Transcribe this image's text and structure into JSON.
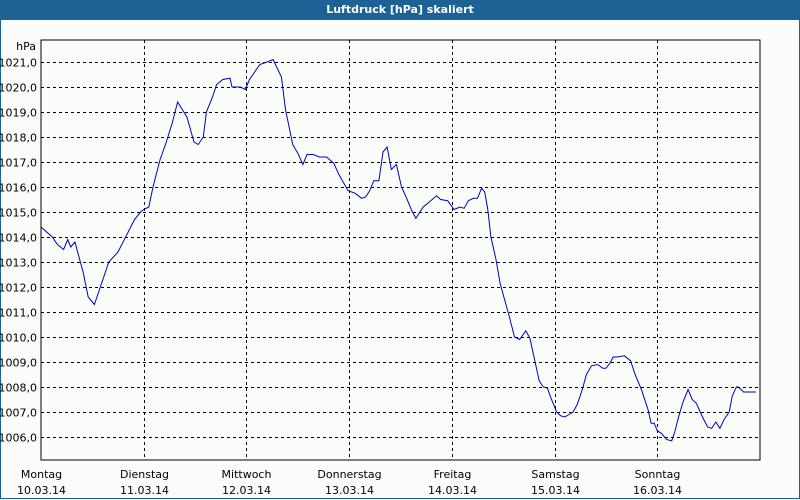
{
  "window": {
    "title": "Luftdruck [hPa] skaliert"
  },
  "colors": {
    "titlebar": "#1d6295",
    "line": "#0000c0",
    "grid": "#000000",
    "background": "#fbfdfb"
  },
  "chart_data": {
    "type": "line",
    "title": "Luftdruck [hPa] skaliert",
    "xlabel": "",
    "ylabel": "hPa",
    "ylim": [
      1005.08,
      1021.88
    ],
    "xlim": [
      0,
      7
    ],
    "grid": true,
    "yticks": [
      "1021,0",
      "1020,0",
      "1019,0",
      "1018,0",
      "1017,0",
      "1016,0",
      "1015,0",
      "1014,0",
      "1013,0",
      "1012,0",
      "1011,0",
      "1010,0",
      "1009,0",
      "1008,0",
      "1007,0",
      "1006,0"
    ],
    "ytick_values": [
      1021,
      1020,
      1019,
      1018,
      1017,
      1016,
      1015,
      1014,
      1013,
      1012,
      1011,
      1010,
      1009,
      1008,
      1007,
      1006
    ],
    "xticks": [
      {
        "day": "Montag",
        "date": "10.03.14"
      },
      {
        "day": "Dienstag",
        "date": "11.03.14"
      },
      {
        "day": "Mittwoch",
        "date": "12.03.14"
      },
      {
        "day": "Donnerstag",
        "date": "13.03.14"
      },
      {
        "day": "Freitag",
        "date": "14.03.14"
      },
      {
        "day": "Samstag",
        "date": "15.03.14"
      },
      {
        "day": "Sonntag",
        "date": "16.03.14"
      }
    ],
    "series": [
      {
        "name": "Luftdruck",
        "x_days": [
          0.0,
          0.11,
          0.16,
          0.22,
          0.26,
          0.29,
          0.33,
          0.37,
          0.41,
          0.46,
          0.52,
          0.57,
          0.66,
          0.75,
          0.91,
          0.97,
          1.0,
          1.05,
          1.09,
          1.16,
          1.22,
          1.28,
          1.33,
          1.42,
          1.49,
          1.53,
          1.58,
          1.61,
          1.67,
          1.71,
          1.77,
          1.84,
          1.86,
          1.94,
          1.99,
          2.03,
          2.13,
          2.2,
          2.26,
          2.34,
          2.38,
          2.45,
          2.5,
          2.55,
          2.59,
          2.65,
          2.71,
          2.78,
          2.85,
          2.9,
          2.99,
          3.06,
          3.12,
          3.16,
          3.2,
          3.24,
          3.29,
          3.33,
          3.37,
          3.41,
          3.46,
          3.51,
          3.56,
          3.61,
          3.65,
          3.72,
          3.78,
          3.85,
          3.89,
          3.96,
          4.02,
          4.08,
          4.12,
          4.16,
          4.21,
          4.25,
          4.29,
          4.32,
          4.35,
          4.38,
          4.43,
          4.47,
          4.51,
          4.56,
          4.61,
          4.66,
          4.72,
          4.76,
          4.81,
          4.85,
          4.89,
          4.93,
          4.97,
          5.02,
          5.06,
          5.1,
          5.14,
          5.18,
          5.22,
          5.27,
          5.31,
          5.36,
          5.42,
          5.47,
          5.5,
          5.54,
          5.57,
          5.61,
          5.68,
          5.74,
          5.78,
          5.85,
          5.91,
          5.94,
          5.97,
          6.0,
          6.04,
          6.09,
          6.14,
          6.17,
          6.21,
          6.25,
          6.3,
          6.34,
          6.38,
          6.44,
          6.49,
          6.53,
          6.57,
          6.61,
          6.65,
          6.7,
          6.73,
          6.77,
          6.79,
          6.84,
          6.88,
          6.92,
          6.96
        ],
        "values": [
          1014.4,
          1014.0,
          1013.7,
          1013.5,
          1013.9,
          1013.6,
          1013.8,
          1013.2,
          1012.6,
          1011.6,
          1011.3,
          1011.9,
          1013.0,
          1013.4,
          1014.7,
          1015.0,
          1015.1,
          1015.2,
          1016.0,
          1017.1,
          1017.8,
          1018.6,
          1019.4,
          1018.8,
          1017.8,
          1017.7,
          1018.0,
          1019.0,
          1019.6,
          1020.1,
          1020.3,
          1020.35,
          1020.0,
          1020.0,
          1019.9,
          1020.3,
          1020.9,
          1021.0,
          1021.1,
          1020.4,
          1019.1,
          1017.7,
          1017.35,
          1016.9,
          1017.3,
          1017.3,
          1017.2,
          1017.2,
          1016.95,
          1016.5,
          1015.85,
          1015.75,
          1015.55,
          1015.6,
          1015.85,
          1016.25,
          1016.25,
          1017.4,
          1017.6,
          1016.7,
          1016.9,
          1016.0,
          1015.55,
          1015.05,
          1014.75,
          1015.2,
          1015.4,
          1015.65,
          1015.5,
          1015.45,
          1015.1,
          1015.2,
          1015.15,
          1015.45,
          1015.55,
          1015.55,
          1015.95,
          1015.8,
          1015.1,
          1014.0,
          1013.1,
          1012.15,
          1011.55,
          1010.8,
          1010.0,
          1009.9,
          1010.25,
          1009.95,
          1009.0,
          1008.25,
          1008.0,
          1007.95,
          1007.5,
          1007.0,
          1006.85,
          1006.8,
          1006.9,
          1007.0,
          1007.3,
          1007.9,
          1008.5,
          1008.85,
          1008.9,
          1008.75,
          1008.75,
          1008.95,
          1009.2,
          1009.2,
          1009.25,
          1009.05,
          1008.55,
          1007.85,
          1007.1,
          1006.55,
          1006.55,
          1006.25,
          1006.15,
          1005.9,
          1005.85,
          1006.2,
          1006.85,
          1007.4,
          1007.9,
          1007.5,
          1007.35,
          1006.8,
          1006.4,
          1006.35,
          1006.6,
          1006.35,
          1006.7,
          1007.0,
          1007.65,
          1008.0,
          1008.0,
          1007.8,
          1007.8,
          1007.8,
          1007.8,
          1007.8,
          1007.8
        ]
      }
    ]
  }
}
